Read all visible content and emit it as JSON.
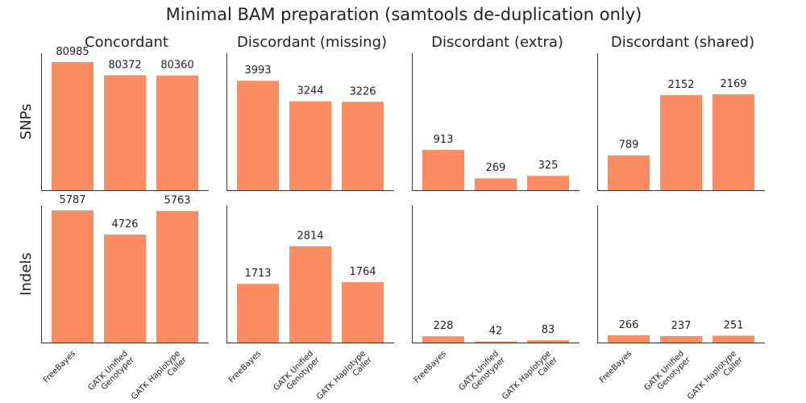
{
  "title": "Minimal BAM preparation (samtools de-duplication only)",
  "colors": {
    "bar": "#fc8d62",
    "axis": "#333333",
    "text": "#222222"
  },
  "chart_data": {
    "type": "bar",
    "title": "Minimal BAM preparation (samtools de-duplication only)",
    "columns": [
      "Concordant",
      "Discordant (missing)",
      "Discordant (extra)",
      "Discordant (shared)"
    ],
    "rows": [
      "SNPs",
      "Indels"
    ],
    "categories": [
      [
        "FreeBayes"
      ],
      [
        "GATK Unified",
        "Genotyper"
      ],
      [
        "GATK Haplotype",
        "Caller"
      ]
    ],
    "grid": false,
    "panels": [
      {
        "row": "SNPs",
        "column": "Concordant",
        "values": [
          80985,
          80372,
          80360
        ],
        "ylim": [
          75000,
          81400
        ]
      },
      {
        "row": "SNPs",
        "column": "Discordant (missing)",
        "values": [
          3993,
          3244,
          3226
        ],
        "ylim": [
          0,
          5000
        ]
      },
      {
        "row": "SNPs",
        "column": "Discordant (extra)",
        "values": [
          913,
          269,
          325
        ],
        "ylim": [
          0,
          3100
        ]
      },
      {
        "row": "SNPs",
        "column": "Discordant (shared)",
        "values": [
          789,
          2152,
          2169
        ],
        "ylim": [
          0,
          3100
        ]
      },
      {
        "row": "Indels",
        "column": "Concordant",
        "values": [
          5787,
          4726,
          5763
        ],
        "ylim": [
          0,
          6000
        ]
      },
      {
        "row": "Indels",
        "column": "Discordant (missing)",
        "values": [
          1713,
          2814,
          1764
        ],
        "ylim": [
          0,
          4000
        ]
      },
      {
        "row": "Indels",
        "column": "Discordant (extra)",
        "values": [
          228,
          42,
          83
        ],
        "ylim": [
          0,
          5000
        ]
      },
      {
        "row": "Indels",
        "column": "Discordant (shared)",
        "values": [
          266,
          237,
          251
        ],
        "ylim": [
          0,
          5000
        ]
      }
    ]
  }
}
